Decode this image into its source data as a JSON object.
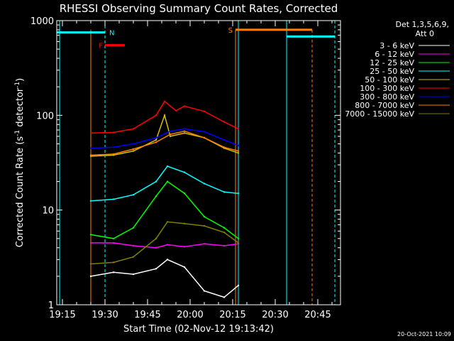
{
  "chart_data": {
    "type": "line",
    "title": "RHESSI Observing Summary Count Rates, Corrected",
    "xlabel": "Start Time (02-Nov-12 19:13:42)",
    "ylabel": "Corrected Count Rate (s",
    "ylabel_sup1": "-1",
    "ylabel_mid": " detector",
    "ylabel_sup2": "-1",
    "ylabel_end": ")",
    "y_scale": "log",
    "xlim": [
      "19:13",
      "20:53"
    ],
    "ylim": [
      1,
      1000
    ],
    "x_ticks": [
      {
        "t": "19:15",
        "label": "19:15"
      },
      {
        "t": "19:30",
        "label": "19:30"
      },
      {
        "t": "19:45",
        "label": "19:45"
      },
      {
        "t": "20:00",
        "label": "20:00"
      },
      {
        "t": "20:15",
        "label": "20:15"
      },
      {
        "t": "20:30",
        "label": "20:30"
      },
      {
        "t": "20:45",
        "label": "20:45"
      }
    ],
    "y_ticks": [
      {
        "v": 1,
        "label": "1"
      },
      {
        "v": 10,
        "label": "10"
      },
      {
        "v": 100,
        "label": "100"
      },
      {
        "v": 1000,
        "label": "1000"
      }
    ],
    "legend_header": [
      "Det 1,3,5,6,9,",
      "Att 0"
    ],
    "legend_position": "right",
    "data_window": [
      "19:25",
      "20:18"
    ],
    "series": [
      {
        "name": "3 - 6 keV",
        "color": "#ffffff",
        "t": [
          "19:25",
          "19:33",
          "19:40",
          "19:48",
          "19:52",
          "19:58",
          "20:05",
          "20:12",
          "20:17"
        ],
        "y": [
          2.0,
          2.2,
          2.1,
          2.4,
          3.0,
          2.5,
          1.4,
          1.2,
          1.6
        ]
      },
      {
        "name": "6 - 12 keV",
        "color": "#ff00ff",
        "t": [
          "19:25",
          "19:33",
          "19:40",
          "19:48",
          "19:52",
          "19:58",
          "20:05",
          "20:12",
          "20:17"
        ],
        "y": [
          4.5,
          4.5,
          4.2,
          4.0,
          4.3,
          4.1,
          4.4,
          4.2,
          4.4
        ]
      },
      {
        "name": "12 - 25 keV",
        "color": "#00ff00",
        "t": [
          "19:25",
          "19:33",
          "19:40",
          "19:48",
          "19:52",
          "19:58",
          "20:05",
          "20:12",
          "20:17"
        ],
        "y": [
          5.5,
          5.0,
          6.5,
          14.0,
          20.0,
          15.0,
          8.5,
          6.5,
          5.0
        ]
      },
      {
        "name": "25 - 50 keV",
        "color": "#00ffff",
        "t": [
          "19:25",
          "19:33",
          "19:40",
          "19:48",
          "19:52",
          "19:58",
          "20:05",
          "20:12",
          "20:17"
        ],
        "y": [
          12.5,
          13.0,
          14.5,
          20.0,
          29.0,
          25.0,
          19.0,
          15.5,
          15.0
        ]
      },
      {
        "name": "50 - 100 keV",
        "color": "#d8c000",
        "t": [
          "19:25",
          "19:33",
          "19:40",
          "19:48",
          "19:51",
          "19:53",
          "19:58",
          "20:05",
          "20:12",
          "20:17"
        ],
        "y": [
          37.0,
          38.0,
          42.0,
          55.0,
          100.0,
          60.0,
          65.0,
          58.0,
          45.0,
          40.0
        ]
      },
      {
        "name": "100 - 300 keV",
        "color": "#ff0000",
        "t": [
          "19:25",
          "19:33",
          "19:40",
          "19:48",
          "19:51",
          "19:55",
          "19:58",
          "20:05",
          "20:12",
          "20:17"
        ],
        "y": [
          65.0,
          66.0,
          72.0,
          100.0,
          140.0,
          112.0,
          125.0,
          110.0,
          85.0,
          72.0
        ]
      },
      {
        "name": "300 - 800 keV",
        "color": "#0000ff",
        "t": [
          "19:25",
          "19:33",
          "19:40",
          "19:48",
          "19:53",
          "19:58",
          "20:05",
          "20:12",
          "20:17"
        ],
        "y": [
          45.0,
          46.0,
          50.0,
          58.0,
          68.0,
          72.0,
          67.0,
          55.0,
          48.0
        ]
      },
      {
        "name": "800 - 7000 keV",
        "color": "#ff8000",
        "t": [
          "19:25",
          "19:33",
          "19:40",
          "19:48",
          "19:53",
          "19:58",
          "20:05",
          "20:12",
          "20:17"
        ],
        "y": [
          38.0,
          39.0,
          44.0,
          52.0,
          63.0,
          68.0,
          58.0,
          46.0,
          42.0
        ]
      },
      {
        "name": "7000 - 15000 keV",
        "color": "#808000",
        "t": [
          "19:25",
          "19:33",
          "19:40",
          "19:48",
          "19:52",
          "19:58",
          "20:05",
          "20:12",
          "20:17"
        ],
        "y": [
          2.7,
          2.8,
          3.2,
          5.0,
          7.5,
          7.2,
          6.8,
          5.8,
          4.5
        ]
      }
    ],
    "flags": {
      "saa_label": "S",
      "night_label": "N",
      "flare_label": "F",
      "saa_color": "#ff8000",
      "night_color": "#00ffff",
      "flare_color": "#ff0000",
      "night_segments": [
        {
          "start": "19:13",
          "end": "19:30",
          "level": 750
        },
        {
          "start": "20:34",
          "end": "20:51",
          "level": 680
        }
      ],
      "saa_segments": [
        {
          "start": "20:16",
          "end": "20:43",
          "level": 800
        }
      ],
      "flare_segments": [
        {
          "start": "19:30",
          "end": "19:37",
          "level": 550
        }
      ],
      "night_vlines": [
        {
          "t": "19:14",
          "style": "solid"
        },
        {
          "t": "19:30",
          "style": "dashed"
        },
        {
          "t": "20:17",
          "style": "solid"
        },
        {
          "t": "20:34",
          "style": "solid"
        },
        {
          "t": "20:51",
          "style": "dashed"
        }
      ],
      "saa_vlines": [
        {
          "t": "19:25",
          "style": "solid"
        },
        {
          "t": "20:16",
          "style": "solid"
        },
        {
          "t": "20:43",
          "style": "dashed"
        }
      ]
    }
  },
  "footer_timestamp": "20-Oct-2021 10:09"
}
